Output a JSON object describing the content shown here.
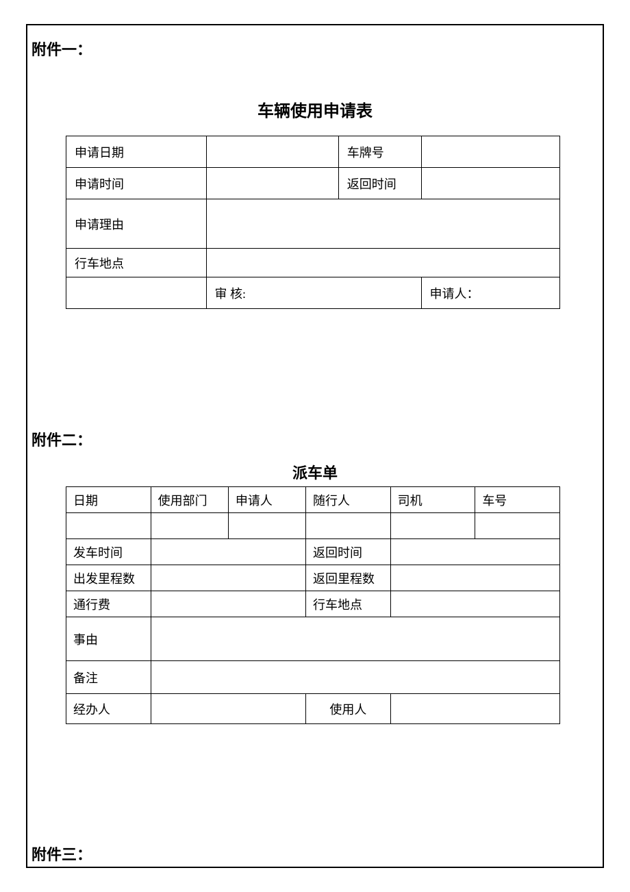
{
  "page": {
    "attach1_label": "附件一：",
    "attach2_label": "附件二：",
    "attach3_label": "附件三："
  },
  "form1": {
    "title": "车辆使用申请表",
    "rows": {
      "apply_date": "申请日期",
      "plate_no": "车牌号",
      "apply_time": "申请时间",
      "return_time": "返回时间",
      "reason": "申请理由",
      "location": "行车地点",
      "review": "审 核:",
      "applicant": "申请人："
    }
  },
  "form2": {
    "title": "派车单",
    "headers": {
      "date": "日期",
      "dept": "使用部门",
      "applicant": "申请人",
      "follower": "随行人",
      "driver": "司机",
      "car_no": "车号"
    },
    "rows": {
      "depart_time": "发车时间",
      "return_time": "返回时间",
      "depart_mileage": "出发里程数",
      "return_mileage": "返回里程数",
      "toll": "通行费",
      "location": "行车地点",
      "reason": "事由",
      "remark": "备注",
      "handler": "经办人",
      "user": "使用人"
    }
  },
  "style": {
    "border_color": "#000000",
    "background_color": "#ffffff",
    "text_color": "#000000",
    "title_fontsize": 24,
    "label_fontsize": 22,
    "cell_fontsize": 18
  }
}
